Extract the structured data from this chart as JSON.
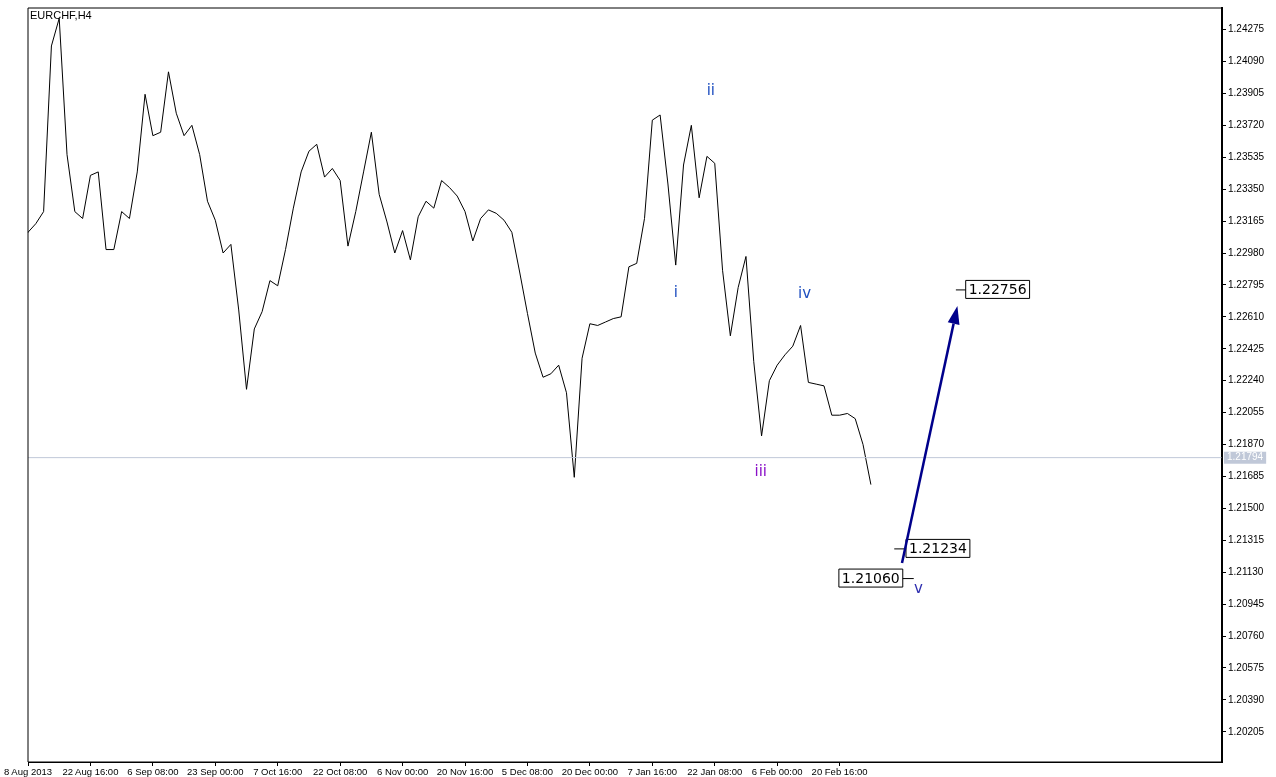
{
  "chart_data": {
    "type": "line",
    "title": "EURCHF,H4",
    "categories": [
      "8 Aug 2013",
      null,
      null,
      null,
      null,
      null,
      null,
      null,
      "22 Aug 16:00",
      null,
      null,
      null,
      null,
      null,
      null,
      null,
      "6 Sep 08:00",
      null,
      null,
      null,
      null,
      null,
      null,
      null,
      "23 Sep 00:00",
      null,
      null,
      null,
      null,
      null,
      null,
      null,
      "7 Oct 16:00",
      null,
      null,
      null,
      null,
      null,
      null,
      null,
      "22 Oct 08:00",
      null,
      null,
      null,
      null,
      null,
      null,
      null,
      "6 Nov 00:00",
      null,
      null,
      null,
      null,
      null,
      null,
      null,
      "20 Nov 16:00",
      null,
      null,
      null,
      null,
      null,
      null,
      null,
      "5 Dec 08:00",
      null,
      null,
      null,
      null,
      null,
      null,
      null,
      "20 Dec 00:00",
      null,
      null,
      null,
      null,
      null,
      null,
      null,
      "7 Jan 16:00",
      null,
      null,
      null,
      null,
      null,
      null,
      null,
      "22 Jan 08:00",
      null,
      null,
      null,
      null,
      null,
      null,
      null,
      "6 Feb 00:00",
      null,
      null,
      null,
      null,
      null,
      null,
      null,
      "20 Feb 16:00",
      null,
      null,
      null,
      null,
      null,
      null,
      null,
      null,
      null,
      null,
      null,
      null,
      null,
      null,
      null,
      null,
      null,
      null,
      null,
      null,
      null,
      null,
      null,
      null,
      null,
      null,
      null,
      null,
      null,
      null,
      null,
      null,
      null,
      null,
      null,
      null,
      null,
      null,
      null,
      null,
      null,
      null,
      null,
      null,
      null,
      null,
      null,
      null,
      null
    ],
    "series": [
      {
        "color": "#000000",
        "values": [
          1.231,
          1.2315,
          1.2322,
          1.2418,
          1.2434,
          1.2355,
          1.2322,
          1.2318,
          1.2343,
          1.2345,
          1.23,
          1.23,
          1.2322,
          1.2318,
          1.2345,
          1.239,
          1.2366,
          1.2368,
          1.2403,
          1.2379,
          1.2366,
          1.2372,
          1.2355,
          1.2328,
          1.2317,
          1.2298,
          1.2303,
          1.2265,
          1.2219,
          1.2254,
          1.2264,
          1.2282,
          1.2279,
          1.23,
          1.2324,
          1.2345,
          1.2357,
          1.2361,
          1.2342,
          1.2347,
          1.234,
          1.2302,
          1.2322,
          1.2345,
          1.2368,
          1.2332,
          1.2316,
          1.2298,
          1.2311,
          1.2294,
          1.2319,
          1.2328,
          1.2324,
          1.234,
          1.2336,
          1.2331,
          1.2322,
          1.2305,
          1.2318,
          1.2323,
          1.2321,
          1.2317,
          1.231,
          1.2287,
          1.2263,
          1.224,
          1.2226,
          1.2228,
          1.2233,
          1.2217,
          1.2168,
          1.2237,
          1.2257,
          1.2256,
          1.2258,
          1.226,
          1.2261,
          1.229,
          1.2292,
          1.2318,
          1.2375,
          1.2378,
          1.2338,
          1.2291,
          1.2349,
          1.2372,
          1.233,
          1.2354,
          1.235,
          1.2288,
          1.225,
          1.2278,
          1.2296,
          1.2235,
          1.2192,
          1.2224,
          1.2233,
          1.2239,
          1.2244,
          1.2256,
          1.2223,
          1.2222,
          1.2221,
          1.2204,
          1.2204,
          1.2205,
          1.2202,
          1.2187,
          1.2164,
          null,
          null,
          null,
          null,
          null,
          null,
          null,
          null,
          null,
          null,
          null,
          null,
          null,
          null,
          null,
          null,
          null,
          null,
          null,
          null,
          null,
          null,
          null,
          null,
          null,
          null,
          null,
          null,
          null,
          null,
          null,
          null,
          null,
          null,
          null,
          null,
          null,
          null,
          null,
          null,
          null,
          null,
          null,
          null,
          null
        ]
      }
    ],
    "ylim": [
      1.2003,
      1.244
    ],
    "yticks": [
      1.20205,
      {
        "value": 1.2039,
        "label": "1.20390"
      },
      1.20575,
      {
        "value": 1.2076,
        "label": "1.20760"
      },
      1.20945,
      {
        "value": 1.2113,
        "label": "1.21130"
      },
      1.21315,
      {
        "value": 1.215,
        "label": "1.21500"
      },
      1.21685,
      {
        "value": 1.2187,
        "label": "1.21870"
      },
      1.22055,
      {
        "value": 1.2224,
        "label": "1.22240"
      },
      1.22425,
      {
        "value": 1.2261,
        "label": "1.22610"
      },
      1.22795,
      {
        "value": 1.2298,
        "label": "1.22980"
      },
      1.23165,
      {
        "value": 1.2335,
        "label": "1.23350"
      },
      1.23535,
      {
        "value": 1.2372,
        "label": "1.23720"
      },
      1.23905,
      {
        "value": 1.2409,
        "label": "1.24090"
      },
      1.24275
    ],
    "ref_lines": [
      {
        "axis": "y",
        "value": 1.21794,
        "label": "1.21794",
        "color": "#c0c8d8"
      }
    ],
    "annotations": [
      "i",
      "ii",
      "iii",
      "iv",
      "v",
      "1.22756",
      "1.21234",
      "1.21060"
    ],
    "legend": false,
    "marker": "none",
    "line_style": "solid"
  }
}
